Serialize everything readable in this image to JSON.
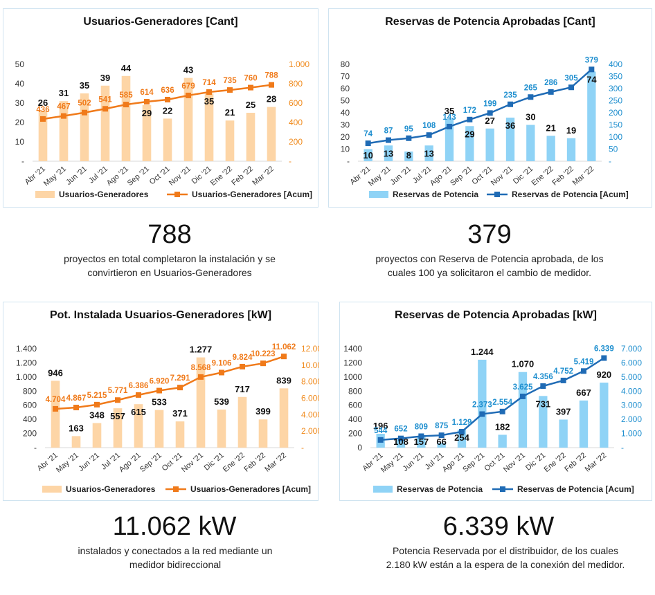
{
  "colors": {
    "orange_bar": "#fdd5a6",
    "orange_line": "#f07a1a",
    "blue_bar": "#8fd3f6",
    "blue_line": "#1f6bb5",
    "blue_label": "#1f8fcf",
    "axis_orange": "#f08a1c",
    "axis_blue": "#1f8fcf"
  },
  "chart_data": [
    {
      "type": "bar",
      "title": "Usuarios-Generadores [Cant]",
      "categories": [
        "Abr '21",
        "May '21",
        "Jun '21",
        "Jul '21",
        "Ago '21",
        "Sep '21",
        "Oct '21",
        "Nov '21",
        "Dic '21",
        "Ene '22",
        "Feb '22",
        "Mar '22"
      ],
      "series": [
        {
          "name": "Usuarios-Generadores",
          "type": "bar",
          "axis": "left",
          "values": [
            26,
            31,
            35,
            39,
            44,
            29,
            22,
            43,
            35,
            21,
            25,
            28
          ],
          "labels": [
            "26",
            "31",
            "35",
            "39",
            "44",
            "29",
            "22",
            "43",
            "35",
            "21",
            "25",
            "28"
          ]
        },
        {
          "name": "Usuarios-Generadores [Acum]",
          "type": "line",
          "axis": "right",
          "values": [
            436,
            467,
            502,
            541,
            585,
            614,
            636,
            679,
            714,
            735,
            760,
            788
          ],
          "labels": [
            "436",
            "467",
            "502",
            "541",
            "585",
            "614",
            "636",
            "679",
            "714",
            "735",
            "760",
            "788"
          ]
        }
      ],
      "left_ticks": [
        "-",
        "10",
        "20",
        "30",
        "40",
        "50"
      ],
      "right_ticks": [
        "-",
        "200",
        "400",
        "600",
        "800",
        "1.000"
      ],
      "ylim_left": [
        0,
        50
      ],
      "ylim_right": [
        0,
        1000
      ],
      "legend": "bottom"
    },
    {
      "type": "bar",
      "title": "Reservas de Potencia Aprobadas [Cant]",
      "categories": [
        "Abr '21",
        "May '21",
        "Jun '21",
        "Jul '21",
        "Ago '21",
        "Sep '21",
        "Oct '21",
        "Nov '21",
        "Dic '21",
        "Ene '22",
        "Feb '22",
        "Mar '22"
      ],
      "series": [
        {
          "name": "Reservas de Potencia",
          "type": "bar",
          "axis": "left",
          "values": [
            10,
            13,
            8,
            13,
            35,
            29,
            27,
            36,
            30,
            21,
            19,
            74
          ],
          "labels": [
            "10",
            "13",
            "8",
            "13",
            "35",
            "29",
            "27",
            "36",
            "30",
            "21",
            "19",
            "74"
          ]
        },
        {
          "name": "Reservas de Potencia [Acum]",
          "type": "line",
          "axis": "right",
          "values": [
            74,
            87,
            95,
            108,
            143,
            172,
            199,
            235,
            265,
            286,
            305,
            379
          ],
          "labels": [
            "74",
            "87",
            "95",
            "108",
            "143",
            "172",
            "199",
            "235",
            "265",
            "286",
            "305",
            "379"
          ]
        }
      ],
      "left_ticks": [
        "-",
        "10",
        "20",
        "30",
        "40",
        "50",
        "60",
        "70",
        "80"
      ],
      "right_ticks": [
        "-",
        "50",
        "100",
        "150",
        "200",
        "250",
        "300",
        "350",
        "400"
      ],
      "ylim_left": [
        0,
        80
      ],
      "ylim_right": [
        0,
        400
      ],
      "legend": "bottom"
    },
    {
      "type": "bar",
      "title": "Pot. Instalada Usuarios-Generadores [kW]",
      "categories": [
        "Abr '21",
        "May '21",
        "Jun '21",
        "Jul '21",
        "Ago '21",
        "Sep '21",
        "Oct '21",
        "Nov '21",
        "Dic '21",
        "Ene '22",
        "Feb '22",
        "Mar '22"
      ],
      "series": [
        {
          "name": "Usuarios-Generadores",
          "type": "bar",
          "axis": "left",
          "values": [
            946,
            163,
            348,
            557,
            615,
            533,
            371,
            1277,
            539,
            717,
            399,
            839
          ],
          "labels": [
            "946",
            "163",
            "348",
            "557",
            "615",
            "533",
            "371",
            "1.277",
            "539",
            "717",
            "399",
            "839"
          ]
        },
        {
          "name": "Usuarios-Generadores [Acum]",
          "type": "line",
          "axis": "right",
          "values": [
            4704,
            4867,
            5215,
            5771,
            6386,
            6920,
            7291,
            8568,
            9106,
            9824,
            10223,
            11062
          ],
          "labels": [
            "4.704",
            "4.867",
            "5.215",
            "5.771",
            "6.386",
            "6.920",
            "7.291",
            "8.568",
            "9.106",
            "9.824",
            "10.223",
            "11.062"
          ]
        }
      ],
      "left_ticks": [
        "-",
        "200",
        "400",
        "600",
        "800",
        "1.000",
        "1.200",
        "1.400"
      ],
      "right_ticks": [
        "-",
        "2.000",
        "4.000",
        "6.000",
        "8.000",
        "10.000",
        "12.000"
      ],
      "ylim_left": [
        0,
        1400
      ],
      "ylim_right": [
        0,
        12000
      ],
      "legend": "bottom"
    },
    {
      "type": "bar",
      "title": "Reservas de Potencia Aprobadas [kW]",
      "categories": [
        "Abr '21",
        "May '21",
        "Jun '21",
        "Jul '21",
        "Ago '21",
        "Sep '21",
        "Oct '21",
        "Nov '21",
        "Dic '21",
        "Ene '22",
        "Feb '22",
        "Mar '22"
      ],
      "series": [
        {
          "name": "Reservas de Potencia",
          "type": "bar",
          "axis": "left",
          "values": [
            196,
            108,
            157,
            66,
            254,
            1244,
            182,
            1070,
            731,
            397,
            667,
            920
          ],
          "labels": [
            "196",
            "108",
            "157",
            "66",
            "254",
            "1.244",
            "182",
            "1.070",
            "731",
            "397",
            "667",
            "920"
          ]
        },
        {
          "name": "Reservas de Potencia [Acum]",
          "type": "line",
          "axis": "right",
          "values": [
            544,
            652,
            809,
            875,
            1129,
            2373,
            2554,
            3625,
            4356,
            4752,
            5419,
            6339
          ],
          "labels": [
            "544",
            "652",
            "809",
            "875",
            "1.129",
            "2.373",
            "2.554",
            "3.625",
            "4.356",
            "4.752",
            "5.419",
            "6.339"
          ]
        }
      ],
      "left_ticks": [
        "0",
        "200",
        "400",
        "600",
        "800",
        "1000",
        "1200",
        "1400"
      ],
      "right_ticks": [
        "-",
        "1.000",
        "2.000",
        "3.000",
        "4.000",
        "5.000",
        "6.000",
        "7.000"
      ],
      "ylim_left": [
        0,
        1400
      ],
      "ylim_right": [
        0,
        7000
      ],
      "legend": "bottom"
    }
  ],
  "summaries": [
    {
      "number": "788",
      "caption_line1": "proyectos en total completaron la instalación y se",
      "caption_line2": "convirtieron en Usuarios-Generadores"
    },
    {
      "number": "379",
      "caption_line1": "proyectos con Reserva de Potencia aprobada, de los",
      "caption_line2": "cuales 100  ya solicitaron el cambio de medidor."
    },
    {
      "number": "11.062 kW",
      "caption_line1": "instalados y conectados a la red mediante un",
      "caption_line2": "medidor bidireccional"
    },
    {
      "number": "6.339 kW",
      "caption_line1": "Potencia Reservada por el distribuidor, de los cuales",
      "caption_line2": "2.180 kW están a la espera de la conexión del medidor."
    }
  ]
}
